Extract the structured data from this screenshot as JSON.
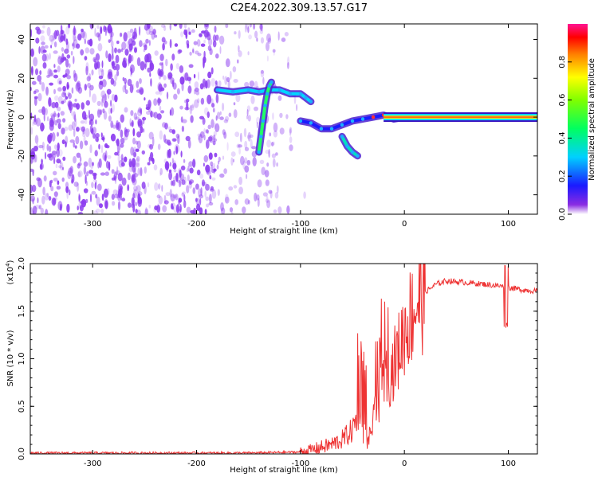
{
  "title": "C2E4.2022.309.13.57.G17",
  "colors": {
    "snr_line": "#ee3333",
    "spectrogram_noise": "#8c3cf0",
    "axis": "#000000"
  },
  "chart_data": [
    {
      "type": "heatmap",
      "xlabel": "Height of straight line (km)",
      "ylabel": "Frequency (Hz)",
      "xlim": [
        -360,
        128
      ],
      "ylim": [
        -50,
        48
      ],
      "xticks": [
        -300,
        -200,
        -100,
        0,
        100
      ],
      "yticks": [
        -40,
        -20,
        0,
        20,
        40
      ],
      "colorbar": {
        "label": "Normalized spectral amplitude",
        "range": [
          0,
          1
        ],
        "ticks": [
          "0.0",
          "0.2",
          "0.4",
          "0.6",
          "0.8"
        ],
        "colormap": "rainbow"
      },
      "grid": false,
      "noise_region_x": [
        -360,
        -95
      ],
      "traces": [
        {
          "x": [
            -180,
            -165,
            -150,
            -140,
            -130,
            -120,
            -110,
            -100,
            -95,
            -90
          ],
          "y": [
            14,
            13,
            14,
            13,
            14,
            14,
            12,
            12,
            10,
            8
          ]
        },
        {
          "x": [
            -140,
            -138,
            -136,
            -134,
            -132,
            -130,
            -128
          ],
          "y": [
            -18,
            -10,
            -2,
            6,
            12,
            16,
            18
          ]
        },
        {
          "x": [
            -100,
            -90,
            -80,
            -70,
            -60,
            -50,
            -40,
            -30,
            -20,
            -10,
            0,
            20,
            60,
            100,
            128
          ],
          "y": [
            -2,
            -3,
            -6,
            -6,
            -4,
            -2,
            -1,
            0,
            1,
            -1,
            0,
            0,
            0,
            0,
            0
          ]
        },
        {
          "x": [
            -60,
            -55,
            -50,
            -45
          ],
          "y": [
            -10,
            -15,
            -18,
            -20
          ]
        }
      ]
    },
    {
      "type": "line",
      "xlabel": "Height of straight line (km)",
      "ylabel": "SNR (10 * v/v)",
      "scale_label": "(x10",
      "scale_exp": "4",
      "scale_close": ")",
      "xlim": [
        -360,
        128
      ],
      "ylim": [
        0,
        2.0
      ],
      "xticks": [
        -300,
        -200,
        -100,
        0,
        100
      ],
      "yticks": [
        "0.0",
        "0.5",
        "1.0",
        "1.5",
        "2.0"
      ],
      "grid": false,
      "series": [
        {
          "x": [
            -360,
            -300,
            -200,
            -150,
            -100,
            -90,
            -80,
            -70,
            -60,
            -50,
            -45,
            -40,
            -35,
            -30,
            -25,
            -20,
            -15,
            -10,
            -5,
            0,
            10,
            20,
            30,
            40,
            60,
            80,
            95,
            100,
            110,
            128
          ],
          "y": [
            0.01,
            0.01,
            0.01,
            0.01,
            0.02,
            0.04,
            0.07,
            0.1,
            0.15,
            0.25,
            0.4,
            0.25,
            0.1,
            0.35,
            0.55,
            0.75,
            0.8,
            0.95,
            1.1,
            1.3,
            1.55,
            1.7,
            1.78,
            1.82,
            1.8,
            1.78,
            1.76,
            1.75,
            1.73,
            1.71
          ]
        }
      ]
    }
  ]
}
